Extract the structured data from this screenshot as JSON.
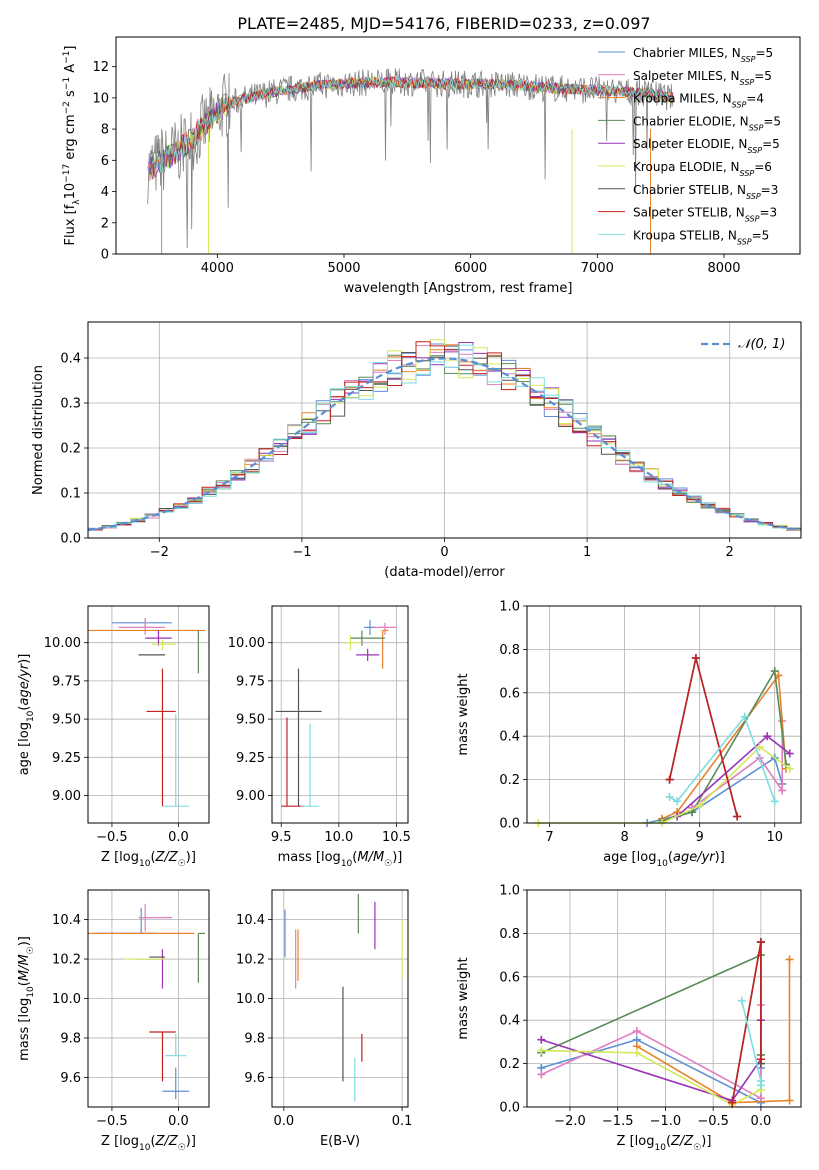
{
  "figure": {
    "title": "PLATE=2485, MJD=54176, FIBERID=0233, z=0.097"
  },
  "colors": {
    "chabrier_miles": "#5f8fd6",
    "salpeter_miles": "#e07fbf",
    "kroupa_miles": "#e8822b",
    "chabrier_elodie": "#5a8a5a",
    "salpeter_elodie": "#9a33b8",
    "kroupa_elodie": "#d4e85a",
    "chabrier_stelib": "#555555",
    "salpeter_stelib": "#c42121",
    "kroupa_stelib": "#7fdde0",
    "data": "#808080",
    "normal": "#5b8fd4"
  },
  "chart_data": [
    {
      "id": "spectrum",
      "type": "line",
      "title": "PLATE=2485, MJD=54176, FIBERID=0233, z=0.097",
      "xlabel": "wavelength [Angstrom, rest frame]",
      "ylabel": "Flux [f_λ 10^-17 erg cm^-2 s^-1 A^-1]",
      "xlim": [
        3200,
        8600
      ],
      "ylim": [
        0,
        13.9
      ],
      "xticks": [
        4000,
        5000,
        6000,
        7000,
        8000
      ],
      "yticks": [
        0,
        2,
        4,
        6,
        8,
        10,
        12
      ],
      "legend_position": "right",
      "continuum": {
        "x": [
          3450,
          3550,
          3650,
          3750,
          3850,
          3950,
          4050,
          4200,
          4400,
          4600,
          4800,
          5000,
          5200,
          5500,
          5800,
          6100,
          6400,
          6700,
          7000,
          7200,
          7400,
          7600
        ],
        "y": [
          5.4,
          5.9,
          6.4,
          7.0,
          7.8,
          8.6,
          9.5,
          9.9,
          10.3,
          10.6,
          10.8,
          10.9,
          11.0,
          11.0,
          10.9,
          10.9,
          10.8,
          10.6,
          10.5,
          10.4,
          10.3,
          10.0
        ]
      },
      "series": [
        {
          "name": "Chabrier MILES",
          "nssp": "5"
        },
        {
          "name": "Salpeter MILES",
          "nssp": "5"
        },
        {
          "name": "Kroupa MILES",
          "nssp": "4"
        },
        {
          "name": "Chabrier ELODIE",
          "nssp": "5"
        },
        {
          "name": "Salpeter ELODIE",
          "nssp": "5"
        },
        {
          "name": "Kroupa ELODIE",
          "nssp": "6"
        },
        {
          "name": "Chabrier STELIB",
          "nssp": "3"
        },
        {
          "name": "Salpeter STELIB",
          "nssp": "3"
        },
        {
          "name": "Kroupa STELIB",
          "nssp": "5"
        }
      ]
    },
    {
      "id": "residuals",
      "type": "histogram",
      "xlabel": "(data-model)/error",
      "ylabel": "Normed distribution",
      "xlim": [
        -2.5,
        2.5
      ],
      "ylim": [
        0,
        0.48
      ],
      "xticks": [
        -2,
        -1,
        0,
        1,
        2
      ],
      "yticks": [
        0.0,
        0.1,
        0.2,
        0.3,
        0.4
      ],
      "grid": true,
      "legend": "𝒩(0, 1)",
      "legend_position": "top-right",
      "bin_width": 0.1
    },
    {
      "id": "age_vs_Z",
      "type": "errorbar",
      "xlabel": "Z [log10(Z/Z☉)]",
      "ylabel": "age [log10(age/yr)]",
      "xlim": [
        -0.68,
        0.23
      ],
      "ylim": [
        8.82,
        10.24
      ],
      "xticks": [
        -0.5,
        0.0
      ],
      "yticks": [
        9.0,
        9.25,
        9.5,
        9.75,
        10.0
      ],
      "grid": true,
      "points": [
        {
          "x": -0.25,
          "y": 10.13,
          "xerr": [
            0.25,
            0.2
          ],
          "yerr": [
            0.03,
            0.03
          ]
        },
        {
          "x": -0.25,
          "y": 10.1,
          "xerr": [
            0.2,
            0.15
          ],
          "yerr": [
            0.05,
            0.06
          ]
        },
        {
          "x": -0.2,
          "y": 10.08,
          "xerr": [
            0.5,
            0.4
          ],
          "yerr": [
            0.0,
            0.0
          ]
        },
        {
          "x": 0.15,
          "y": 10.0,
          "xerr": [
            0.0,
            0.0
          ],
          "yerr": [
            0.2,
            0.08
          ]
        },
        {
          "x": -0.15,
          "y": 10.03,
          "xerr": [
            0.1,
            0.1
          ],
          "yerr": [
            0.05,
            0.05
          ]
        },
        {
          "x": -0.12,
          "y": 9.99,
          "xerr": [
            0.08,
            0.1
          ],
          "yerr": [
            0.04,
            0.03
          ]
        },
        {
          "x": -0.15,
          "y": 9.92,
          "xerr": [
            0.15,
            0.05
          ],
          "yerr": [
            0.0,
            0.0
          ]
        },
        {
          "x": -0.12,
          "y": 9.55,
          "xerr": [
            0.12,
            0.1
          ],
          "yerr": [
            0.62,
            0.28
          ]
        },
        {
          "x": -0.02,
          "y": 8.93,
          "xerr": [
            0.1,
            0.1
          ],
          "yerr": [
            0.0,
            0.6
          ]
        }
      ]
    },
    {
      "id": "age_vs_mass",
      "type": "errorbar",
      "xlabel": "mass [log10(M/M☉)]",
      "ylabel": "",
      "xlim": [
        9.42,
        10.6
      ],
      "ylim": [
        8.82,
        10.24
      ],
      "xticks": [
        9.5,
        10.0,
        10.5
      ],
      "yticks": [
        9.0,
        9.25,
        9.5,
        9.75,
        10.0
      ],
      "grid": true,
      "points": [
        {
          "x": 10.27,
          "y": 10.1,
          "xerr": [
            0.05,
            0.05
          ],
          "yerr": [
            0.05,
            0.05
          ]
        },
        {
          "x": 10.4,
          "y": 10.1,
          "xerr": [
            0.1,
            0.1
          ],
          "yerr": [
            0.05,
            0.03
          ]
        },
        {
          "x": 10.38,
          "y": 10.08,
          "xerr": [
            0.0,
            0.05
          ],
          "yerr": [
            0.25,
            0.0
          ]
        },
        {
          "x": 10.2,
          "y": 10.03,
          "xerr": [
            0.1,
            0.2
          ],
          "yerr": [
            0.05,
            0.05
          ]
        },
        {
          "x": 10.25,
          "y": 9.92,
          "xerr": [
            0.1,
            0.1
          ],
          "yerr": [
            0.04,
            0.04
          ]
        },
        {
          "x": 10.1,
          "y": 10.0,
          "xerr": [
            0.05,
            0.1
          ],
          "yerr": [
            0.05,
            0.05
          ]
        },
        {
          "x": 9.65,
          "y": 9.55,
          "xerr": [
            0.2,
            0.2
          ],
          "yerr": [
            0.62,
            0.28
          ]
        },
        {
          "x": 9.55,
          "y": 8.93,
          "xerr": [
            0.05,
            0.15
          ],
          "yerr": [
            0.0,
            0.58
          ]
        },
        {
          "x": 9.75,
          "y": 8.93,
          "xerr": [
            0.08,
            0.08
          ],
          "yerr": [
            0.0,
            0.54
          ]
        }
      ]
    },
    {
      "id": "weight_vs_age",
      "type": "line",
      "xlabel": "age [log10(age/yr)]",
      "ylabel": "mass weight",
      "xlim": [
        6.7,
        10.35
      ],
      "ylim": [
        0,
        1.0
      ],
      "xticks": [
        7,
        8,
        9,
        10
      ],
      "yticks": [
        0.0,
        0.2,
        0.4,
        0.6,
        0.8,
        1.0
      ],
      "grid": true,
      "series": [
        {
          "x": [
            8.3,
            8.9,
            10.0,
            10.1
          ],
          "y": [
            0.0,
            0.05,
            0.3,
            0.18
          ]
        },
        {
          "x": [
            8.9,
            9.8,
            10.1,
            10.1
          ],
          "y": [
            0.07,
            0.3,
            0.15,
            0.47
          ]
        },
        {
          "x": [
            8.5,
            8.7,
            10.05,
            10.15
          ],
          "y": [
            0.02,
            0.05,
            0.68,
            0.25
          ]
        },
        {
          "x": [
            8.5,
            8.9,
            10.0,
            10.15
          ],
          "y": [
            0.01,
            0.05,
            0.7,
            0.27
          ]
        },
        {
          "x": [
            8.7,
            9.9,
            10.2
          ],
          "y": [
            0.03,
            0.4,
            0.32
          ]
        },
        {
          "x": [
            6.85,
            8.5,
            9.0,
            9.8,
            10.2
          ],
          "y": [
            0.0,
            0.0,
            0.08,
            0.35,
            0.25
          ]
        },
        {
          "x": [
            8.6,
            8.95,
            9.5
          ],
          "y": [
            0.2,
            0.76,
            0.03
          ]
        },
        {
          "x": [
            8.6,
            8.95,
            9.5
          ],
          "y": [
            0.2,
            0.76,
            0.03
          ]
        },
        {
          "x": [
            8.6,
            8.7,
            9.6,
            10.0
          ],
          "y": [
            0.12,
            0.1,
            0.49,
            0.1
          ]
        }
      ]
    },
    {
      "id": "mass_vs_Z",
      "type": "errorbar",
      "xlabel": "Z [log10(Z/Z☉)]",
      "ylabel": "mass [log10(M/M☉)]",
      "xlim": [
        -0.68,
        0.23
      ],
      "ylim": [
        9.45,
        10.55
      ],
      "xticks": [
        -0.5,
        0.0
      ],
      "yticks": [
        9.6,
        9.8,
        10.0,
        10.2,
        10.4
      ],
      "grid": true,
      "points": [
        {
          "x": -0.28,
          "y": 10.33,
          "xerr": [
            0.35,
            0.12
          ],
          "yerr": [
            0.0,
            0.13
          ]
        },
        {
          "x": -0.25,
          "y": 10.41,
          "xerr": [
            0.05,
            0.2
          ],
          "yerr": [
            0.07,
            0.07
          ]
        },
        {
          "x": -0.28,
          "y": 10.33,
          "xerr": [
            0.4,
            0.4
          ],
          "yerr": [
            0.0,
            0.0
          ]
        },
        {
          "x": 0.15,
          "y": 10.33,
          "xerr": [
            0.0,
            0.05
          ],
          "yerr": [
            0.25,
            0.0
          ]
        },
        {
          "x": -0.12,
          "y": 10.2,
          "xerr": [
            0.2,
            0.02
          ],
          "yerr": [
            0.15,
            0.05
          ]
        },
        {
          "x": -0.2,
          "y": 10.2,
          "xerr": [
            0.2,
            0.1
          ],
          "yerr": [
            0.0,
            0.0
          ]
        },
        {
          "x": -0.12,
          "y": 10.21,
          "xerr": [
            0.1,
            0.02
          ],
          "yerr": [
            0.0,
            0.0
          ]
        },
        {
          "x": -0.12,
          "y": 9.83,
          "xerr": [
            0.1,
            0.1
          ],
          "yerr": [
            0.25,
            0.0
          ]
        },
        {
          "x": -0.02,
          "y": 9.71,
          "xerr": [
            0.08,
            0.08
          ],
          "yerr": [
            0.0,
            0.11
          ]
        },
        {
          "x": -0.02,
          "y": 9.53,
          "xerr": [
            0.1,
            0.1
          ],
          "yerr": [
            0.04,
            0.12
          ]
        }
      ]
    },
    {
      "id": "mass_vs_ebv",
      "type": "errorbar",
      "xlabel": "E(B-V)",
      "ylabel": "",
      "xlim": [
        -0.01,
        0.105
      ],
      "ylim": [
        9.45,
        10.55
      ],
      "xticks": [
        0.0,
        0.1
      ],
      "yticks": [
        9.6,
        9.8,
        10.0,
        10.2,
        10.4
      ],
      "grid": true,
      "points": [
        {
          "x": 0.001,
          "y": 10.33,
          "yerr": [
            0.12,
            0.12
          ]
        },
        {
          "x": 0.01,
          "y": 10.2,
          "yerr": [
            0.15,
            0.15
          ]
        },
        {
          "x": 0.012,
          "y": 10.22,
          "yerr": [
            0.13,
            0.13
          ]
        },
        {
          "x": 0.063,
          "y": 10.43,
          "yerr": [
            0.1,
            0.1
          ]
        },
        {
          "x": 0.077,
          "y": 10.37,
          "yerr": [
            0.12,
            0.12
          ]
        },
        {
          "x": 0.1,
          "y": 10.25,
          "yerr": [
            0.15,
            0.15
          ]
        },
        {
          "x": 0.05,
          "y": 9.82,
          "yerr": [
            0.24,
            0.24
          ]
        },
        {
          "x": 0.066,
          "y": 9.75,
          "yerr": [
            0.07,
            0.07
          ]
        },
        {
          "x": 0.06,
          "y": 9.59,
          "yerr": [
            0.11,
            0.11
          ]
        }
      ]
    },
    {
      "id": "weight_vs_Z",
      "type": "line",
      "xlabel": "Z [log10(Z/Z☉)]",
      "ylabel": "mass weight",
      "xlim": [
        -2.45,
        0.42
      ],
      "ylim": [
        0,
        1.0
      ],
      "xticks": [
        -2.0,
        -1.5,
        -1.0,
        -0.5,
        0.0
      ],
      "yticks": [
        0.0,
        0.2,
        0.4,
        0.6,
        0.8,
        1.0
      ],
      "grid": true,
      "series": [
        {
          "x": [
            -2.3,
            -1.3,
            0.0,
            0.0
          ],
          "y": [
            0.18,
            0.31,
            0.02,
            0.18
          ]
        },
        {
          "x": [
            -2.3,
            -1.3,
            0.0,
            0.0
          ],
          "y": [
            0.15,
            0.35,
            0.04,
            0.47
          ]
        },
        {
          "x": [
            -1.3,
            -0.3,
            0.3,
            0.3
          ],
          "y": [
            0.28,
            0.02,
            0.03,
            0.68
          ]
        },
        {
          "x": [
            -2.3,
            0.0,
            0.0
          ],
          "y": [
            0.25,
            0.7,
            0.24
          ]
        },
        {
          "x": [
            -2.3,
            -0.3,
            0.0,
            0.0
          ],
          "y": [
            0.31,
            0.03,
            0.22,
            0.4
          ]
        },
        {
          "x": [
            -2.3,
            -1.3,
            -0.3,
            0.0
          ],
          "y": [
            0.26,
            0.25,
            0.01,
            0.08
          ]
        },
        {
          "x": [
            -0.3,
            0.0,
            0.0
          ],
          "y": [
            0.02,
            0.76,
            0.2
          ]
        },
        {
          "x": [
            -0.3,
            0.0,
            0.0
          ],
          "y": [
            0.02,
            0.76,
            0.22
          ]
        },
        {
          "x": [
            -0.2,
            0.0,
            0.0
          ],
          "y": [
            0.49,
            0.12,
            0.1
          ]
        }
      ]
    }
  ]
}
